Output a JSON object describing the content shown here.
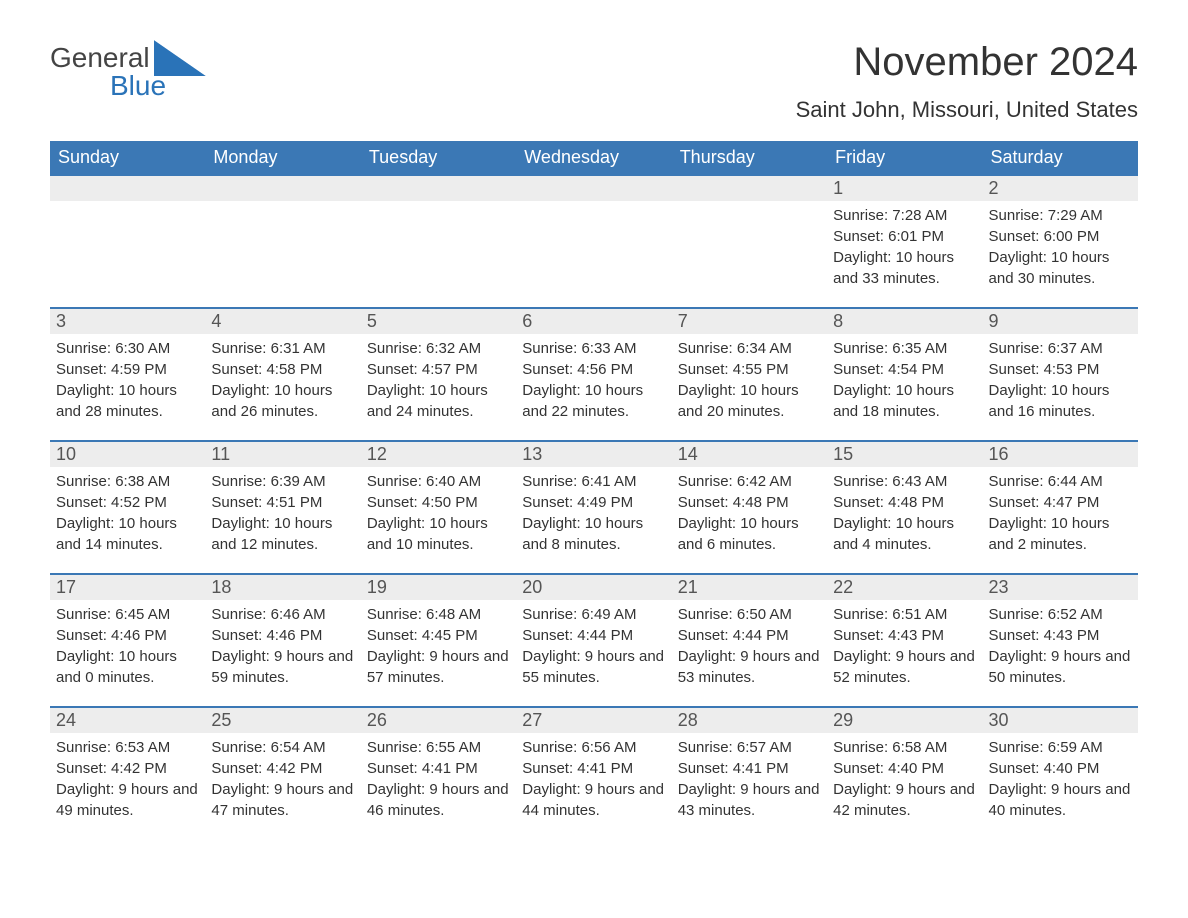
{
  "logo": {
    "top": "General",
    "bottom": "Blue"
  },
  "header": {
    "month_title": "November 2024",
    "location": "Saint John, Missouri, United States"
  },
  "calendar": {
    "header_bg": "#3b78b5",
    "header_fg": "#ffffff",
    "row_top_border": "#3b78b5",
    "daynum_bg": "#ededed",
    "days_of_week": [
      "Sunday",
      "Monday",
      "Tuesday",
      "Wednesday",
      "Thursday",
      "Friday",
      "Saturday"
    ],
    "weeks": [
      [
        null,
        null,
        null,
        null,
        null,
        {
          "n": "1",
          "sunrise": "7:28 AM",
          "sunset": "6:01 PM",
          "daylight": "10 hours and 33 minutes."
        },
        {
          "n": "2",
          "sunrise": "7:29 AM",
          "sunset": "6:00 PM",
          "daylight": "10 hours and 30 minutes."
        }
      ],
      [
        {
          "n": "3",
          "sunrise": "6:30 AM",
          "sunset": "4:59 PM",
          "daylight": "10 hours and 28 minutes."
        },
        {
          "n": "4",
          "sunrise": "6:31 AM",
          "sunset": "4:58 PM",
          "daylight": "10 hours and 26 minutes."
        },
        {
          "n": "5",
          "sunrise": "6:32 AM",
          "sunset": "4:57 PM",
          "daylight": "10 hours and 24 minutes."
        },
        {
          "n": "6",
          "sunrise": "6:33 AM",
          "sunset": "4:56 PM",
          "daylight": "10 hours and 22 minutes."
        },
        {
          "n": "7",
          "sunrise": "6:34 AM",
          "sunset": "4:55 PM",
          "daylight": "10 hours and 20 minutes."
        },
        {
          "n": "8",
          "sunrise": "6:35 AM",
          "sunset": "4:54 PM",
          "daylight": "10 hours and 18 minutes."
        },
        {
          "n": "9",
          "sunrise": "6:37 AM",
          "sunset": "4:53 PM",
          "daylight": "10 hours and 16 minutes."
        }
      ],
      [
        {
          "n": "10",
          "sunrise": "6:38 AM",
          "sunset": "4:52 PM",
          "daylight": "10 hours and 14 minutes."
        },
        {
          "n": "11",
          "sunrise": "6:39 AM",
          "sunset": "4:51 PM",
          "daylight": "10 hours and 12 minutes."
        },
        {
          "n": "12",
          "sunrise": "6:40 AM",
          "sunset": "4:50 PM",
          "daylight": "10 hours and 10 minutes."
        },
        {
          "n": "13",
          "sunrise": "6:41 AM",
          "sunset": "4:49 PM",
          "daylight": "10 hours and 8 minutes."
        },
        {
          "n": "14",
          "sunrise": "6:42 AM",
          "sunset": "4:48 PM",
          "daylight": "10 hours and 6 minutes."
        },
        {
          "n": "15",
          "sunrise": "6:43 AM",
          "sunset": "4:48 PM",
          "daylight": "10 hours and 4 minutes."
        },
        {
          "n": "16",
          "sunrise": "6:44 AM",
          "sunset": "4:47 PM",
          "daylight": "10 hours and 2 minutes."
        }
      ],
      [
        {
          "n": "17",
          "sunrise": "6:45 AM",
          "sunset": "4:46 PM",
          "daylight": "10 hours and 0 minutes."
        },
        {
          "n": "18",
          "sunrise": "6:46 AM",
          "sunset": "4:46 PM",
          "daylight": "9 hours and 59 minutes."
        },
        {
          "n": "19",
          "sunrise": "6:48 AM",
          "sunset": "4:45 PM",
          "daylight": "9 hours and 57 minutes."
        },
        {
          "n": "20",
          "sunrise": "6:49 AM",
          "sunset": "4:44 PM",
          "daylight": "9 hours and 55 minutes."
        },
        {
          "n": "21",
          "sunrise": "6:50 AM",
          "sunset": "4:44 PM",
          "daylight": "9 hours and 53 minutes."
        },
        {
          "n": "22",
          "sunrise": "6:51 AM",
          "sunset": "4:43 PM",
          "daylight": "9 hours and 52 minutes."
        },
        {
          "n": "23",
          "sunrise": "6:52 AM",
          "sunset": "4:43 PM",
          "daylight": "9 hours and 50 minutes."
        }
      ],
      [
        {
          "n": "24",
          "sunrise": "6:53 AM",
          "sunset": "4:42 PM",
          "daylight": "9 hours and 49 minutes."
        },
        {
          "n": "25",
          "sunrise": "6:54 AM",
          "sunset": "4:42 PM",
          "daylight": "9 hours and 47 minutes."
        },
        {
          "n": "26",
          "sunrise": "6:55 AM",
          "sunset": "4:41 PM",
          "daylight": "9 hours and 46 minutes."
        },
        {
          "n": "27",
          "sunrise": "6:56 AM",
          "sunset": "4:41 PM",
          "daylight": "9 hours and 44 minutes."
        },
        {
          "n": "28",
          "sunrise": "6:57 AM",
          "sunset": "4:41 PM",
          "daylight": "9 hours and 43 minutes."
        },
        {
          "n": "29",
          "sunrise": "6:58 AM",
          "sunset": "4:40 PM",
          "daylight": "9 hours and 42 minutes."
        },
        {
          "n": "30",
          "sunrise": "6:59 AM",
          "sunset": "4:40 PM",
          "daylight": "9 hours and 40 minutes."
        }
      ]
    ],
    "labels": {
      "sunrise": "Sunrise: ",
      "sunset": "Sunset: ",
      "daylight": "Daylight: "
    }
  }
}
